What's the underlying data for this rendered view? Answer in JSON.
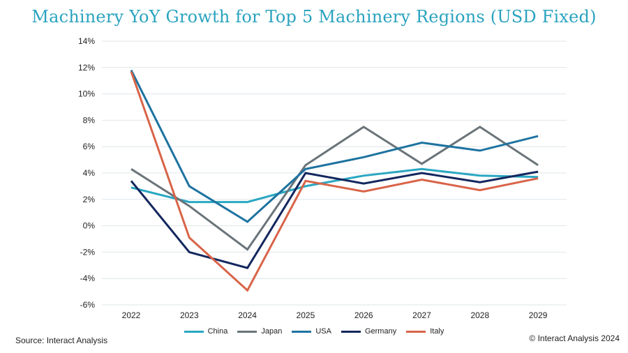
{
  "chart_data": {
    "type": "line",
    "title": "Machinery YoY Growth for Top 5 Machinery Regions (USD Fixed)",
    "xlabel": "",
    "ylabel": "",
    "categories": [
      "2022",
      "2023",
      "2024",
      "2025",
      "2026",
      "2027",
      "2028",
      "2029"
    ],
    "y_ticks": [
      "14%",
      "12%",
      "10%",
      "8%",
      "6%",
      "4%",
      "2%",
      "0%",
      "-2%",
      "-4%",
      "-6%"
    ],
    "ylim": [
      -6,
      14
    ],
    "grid": true,
    "legend_position": "bottom",
    "series": [
      {
        "name": "China",
        "color": "#2aa7c2",
        "values": [
          2.9,
          1.8,
          1.8,
          3.0,
          3.8,
          4.3,
          3.8,
          3.7
        ]
      },
      {
        "name": "Japan",
        "color": "#6a7479",
        "values": [
          4.3,
          1.5,
          -1.8,
          4.6,
          7.5,
          4.7,
          7.5,
          4.6
        ]
      },
      {
        "name": "USA",
        "color": "#1d73a0",
        "values": [
          11.8,
          3.0,
          0.3,
          4.3,
          5.2,
          6.3,
          5.7,
          6.8
        ]
      },
      {
        "name": "Germany",
        "color": "#13275e",
        "values": [
          3.4,
          -2.0,
          -3.2,
          4.0,
          3.2,
          4.0,
          3.3,
          4.1
        ]
      },
      {
        "name": "Italy",
        "color": "#d86448",
        "values": [
          11.7,
          -0.9,
          -4.9,
          3.4,
          2.6,
          3.5,
          2.7,
          3.6
        ]
      }
    ]
  },
  "footer": {
    "source": "Source: Interact Analysis",
    "copyright": "© Interact Analysis 2024"
  }
}
